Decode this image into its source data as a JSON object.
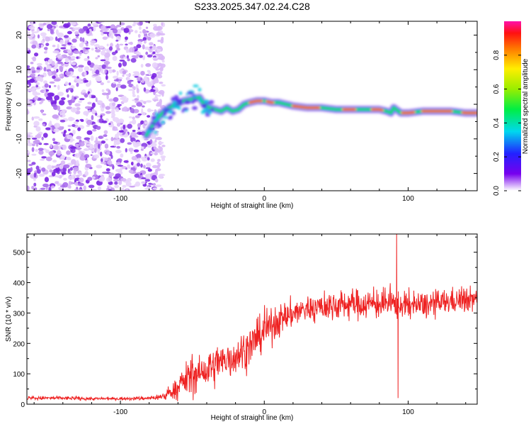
{
  "title": "S233.2025.347.02.24.C28",
  "colorbar": {
    "label": "Normalized spectral amplitude",
    "ticks": [
      "0.0",
      "0.2",
      "0.4",
      "0.6",
      "0.8"
    ],
    "tick_values": [
      0.0,
      0.2,
      0.4,
      0.6,
      0.8
    ],
    "range": [
      0,
      1
    ]
  },
  "chart_data": [
    {
      "type": "heatmap",
      "name": "spectrogram",
      "xlabel": "Height of straight line (km)",
      "ylabel": "Frequency (Hz)",
      "xlim": [
        -165,
        148
      ],
      "ylim": [
        -25,
        24
      ],
      "xticks": [
        -100,
        0,
        100
      ],
      "xtick_labels": [
        "-100",
        "0",
        "100"
      ],
      "yticks": [
        20,
        10,
        0,
        -10,
        -20
      ],
      "ytick_labels": [
        "20",
        "10",
        "0",
        "-10",
        "-20"
      ],
      "noise_region_x": [
        -165,
        -70
      ],
      "ridge": {
        "x": [
          -82,
          -76,
          -72,
          -68,
          -62,
          -56,
          -50,
          -45,
          -42,
          -38,
          -34,
          -30,
          -26,
          -22,
          -18,
          -14,
          -10,
          -5,
          0,
          5,
          10,
          15,
          20,
          30,
          40,
          50,
          60,
          70,
          80,
          85,
          88,
          90,
          95,
          100,
          110,
          120,
          130,
          140,
          148
        ],
        "y": [
          -9,
          -5,
          -3,
          -1.5,
          0,
          1,
          1.5,
          2,
          0,
          -1,
          -1.5,
          -2,
          -1,
          -2,
          -1.5,
          0,
          0.5,
          1,
          1,
          0.5,
          0.5,
          0,
          -0.5,
          -1,
          -1,
          -1.5,
          -1.5,
          -1.5,
          -1.5,
          -2,
          -2.5,
          -1,
          -2.5,
          -2.5,
          -2,
          -2,
          -2,
          -2.5,
          -2.5
        ]
      }
    },
    {
      "type": "line",
      "name": "snr",
      "xlabel": "Height of straight line (km)",
      "ylabel": "SNR (10 * v/v)",
      "xlim": [
        -165,
        148
      ],
      "ylim": [
        0,
        560
      ],
      "xticks": [
        -100,
        0,
        100
      ],
      "xtick_labels": [
        "-100",
        "0",
        "100"
      ],
      "yticks": [
        0,
        100,
        200,
        300,
        400,
        500
      ],
      "ytick_labels": [
        "0",
        "100",
        "200",
        "300",
        "400",
        "500"
      ],
      "color": "#ee2222",
      "envelope": {
        "x": [
          -165,
          -140,
          -120,
          -100,
          -80,
          -70,
          -65,
          -60,
          -55,
          -50,
          -45,
          -40,
          -35,
          -30,
          -25,
          -20,
          -15,
          -10,
          -5,
          0,
          10,
          20,
          30,
          40,
          50,
          60,
          70,
          80,
          90,
          100,
          110,
          120,
          130,
          140,
          148
        ],
        "mean": [
          20,
          20,
          18,
          18,
          20,
          25,
          40,
          55,
          80,
          95,
          100,
          110,
          120,
          135,
          150,
          160,
          175,
          190,
          215,
          240,
          275,
          300,
          315,
          320,
          325,
          330,
          330,
          330,
          330,
          325,
          325,
          330,
          340,
          345,
          345
        ],
        "spread": [
          7,
          7,
          6,
          6,
          7,
          15,
          25,
          40,
          60,
          75,
          60,
          70,
          70,
          75,
          75,
          75,
          75,
          75,
          70,
          65,
          60,
          55,
          50,
          55,
          55,
          55,
          55,
          55,
          55,
          50,
          50,
          50,
          45,
          45,
          45
        ]
      },
      "spikes": [
        {
          "x": 92,
          "y": 560
        },
        {
          "x": 93,
          "y": 20
        }
      ]
    }
  ]
}
